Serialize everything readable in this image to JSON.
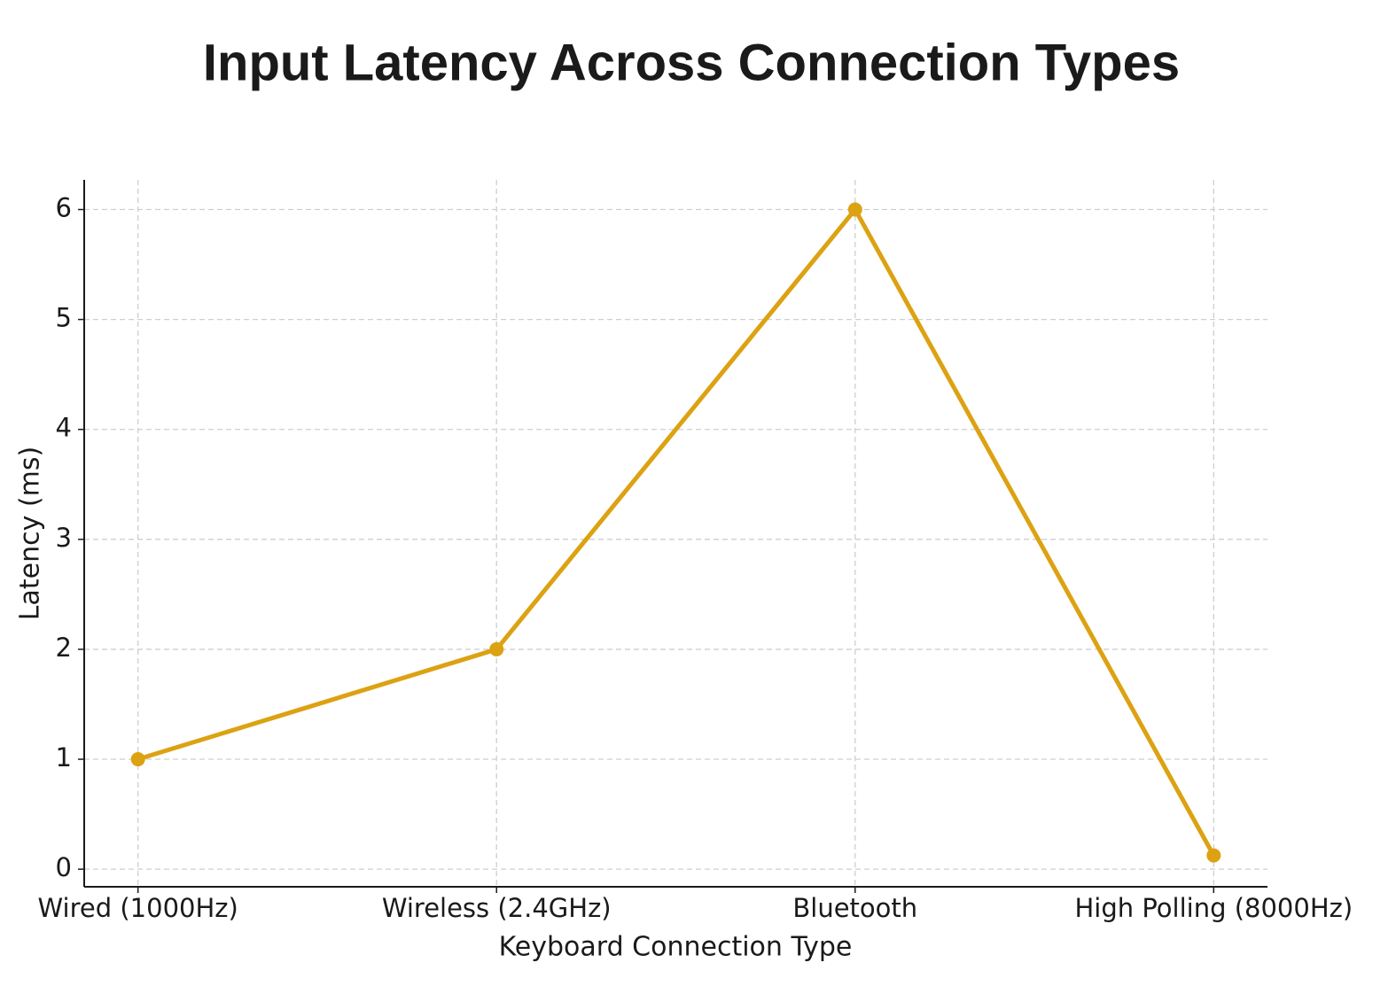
{
  "chart_data": {
    "type": "line",
    "title": "Input Latency Across Connection Types",
    "x_label": "Keyboard Connection Type",
    "y_label": "Latency (ms)",
    "categories": [
      "Wired (1000Hz)",
      "Wireless (2.4GHz)",
      "Bluetooth",
      "High Polling (8000Hz)"
    ],
    "series": [
      {
        "name": "Latency",
        "color": "#dca212",
        "values": [
          1,
          2,
          6,
          0.125
        ]
      }
    ],
    "ylim": [
      -0.16,
      6.27
    ],
    "yticks": [
      0,
      1,
      2,
      3,
      4,
      5,
      6
    ],
    "grid": true
  }
}
